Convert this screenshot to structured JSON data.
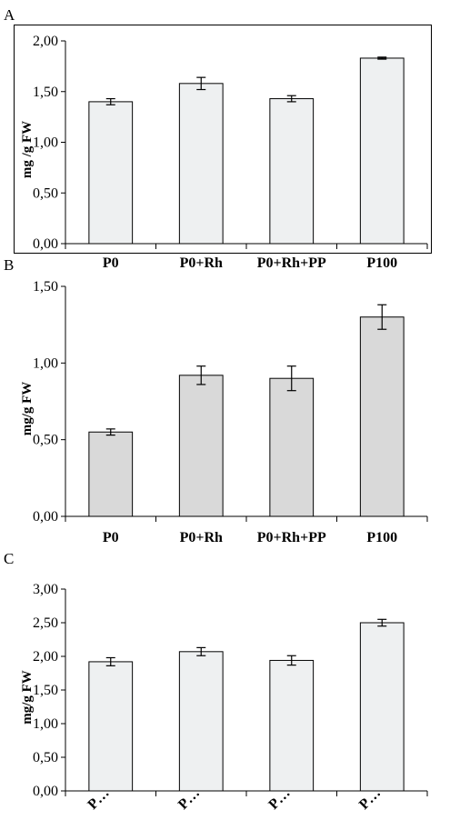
{
  "chart_data": [
    {
      "panel": "A",
      "type": "bar",
      "categories": [
        "P0",
        "P0+Rh",
        "P0+Rh+PP",
        "P100"
      ],
      "values": [
        1.4,
        1.58,
        1.43,
        1.83
      ],
      "errors": [
        0.03,
        0.06,
        0.03,
        0.01
      ],
      "ylabel": "mg /g FW",
      "ylim": [
        0,
        2.0
      ],
      "yticks": [
        "0,00",
        "0,50",
        "1,00",
        "1,50",
        "2,00"
      ],
      "bar_color": "#eef0f1"
    },
    {
      "panel": "B",
      "type": "bar",
      "categories": [
        "P0",
        "P0+Rh",
        "P0+Rh+PP",
        "P100"
      ],
      "values": [
        0.55,
        0.92,
        0.9,
        1.3
      ],
      "errors": [
        0.02,
        0.06,
        0.08,
        0.08
      ],
      "ylabel": "mg/g FW",
      "ylim": [
        0,
        1.5
      ],
      "yticks": [
        "0,00",
        "0,50",
        "1,00",
        "1,50"
      ],
      "bar_color": "#d9d9d9"
    },
    {
      "panel": "C",
      "type": "bar",
      "categories": [
        "P…",
        "P…",
        "P…",
        "P…"
      ],
      "values": [
        1.92,
        2.07,
        1.94,
        2.5
      ],
      "errors": [
        0.06,
        0.06,
        0.07,
        0.05
      ],
      "ylabel": "mg/g FW",
      "ylim": [
        0,
        3.0
      ],
      "yticks": [
        "0,00",
        "0,50",
        "1,00",
        "1,50",
        "2,00",
        "2,50",
        "3,00"
      ],
      "bar_color": "#eef0f1"
    }
  ]
}
